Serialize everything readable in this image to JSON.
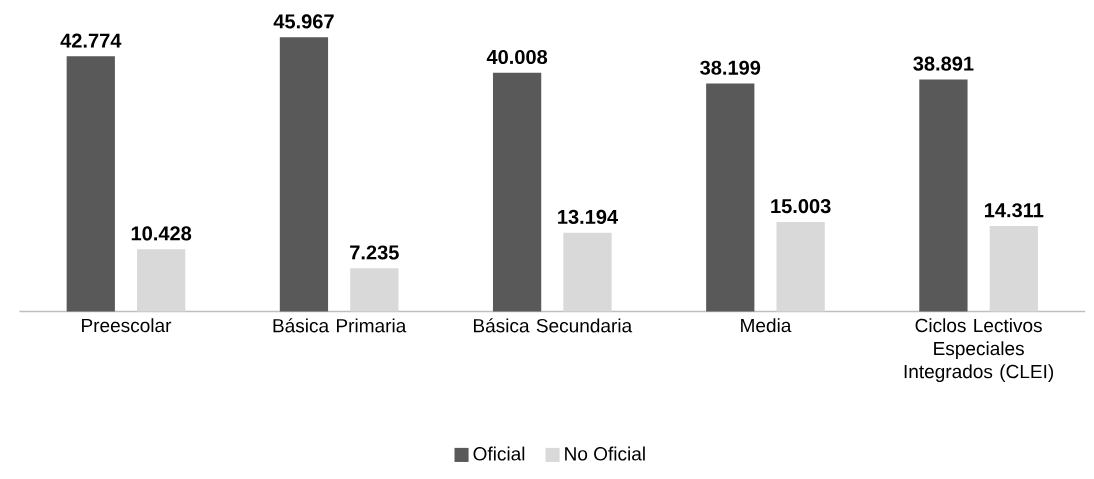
{
  "chart_data": {
    "type": "bar",
    "categories": [
      "Preescolar",
      "Básica Primaria",
      "Básica Secundaria",
      "Media",
      "Ciclos Lectivos Especiales Integrados (CLEI)"
    ],
    "series": [
      {
        "name": "Oficial",
        "color": "#595959",
        "values": [
          42.774,
          45.967,
          40.008,
          38.199,
          38.891
        ]
      },
      {
        "name": "No Oficial",
        "color": "#d9d9d9",
        "values": [
          10.428,
          7.235,
          13.194,
          15.003,
          14.311
        ]
      }
    ],
    "data_labels": true,
    "legend": "bottom"
  }
}
